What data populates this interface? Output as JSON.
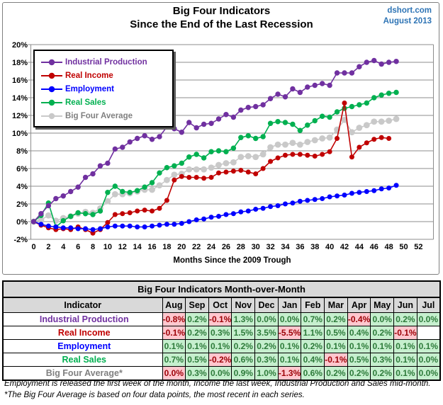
{
  "header": {
    "title_line1": "Big Four Indicators",
    "title_line2": "Since the End of the Last Recession",
    "source": "dshort.com",
    "date": "August 2013"
  },
  "colors": {
    "accent_blue": "#2E74B5",
    "good_bg": "#C6EFCE",
    "good_text": "#2C7A39",
    "bad_bg": "#FFC7CE",
    "bad_text": "#9C0006",
    "header_bg": "#D9D9D9",
    "grid": "#8C8C8C"
  },
  "chart_data": {
    "type": "line",
    "title": "Big Four Indicators Since the End of the Last Recession",
    "xlabel": "Months Since the 2009 Trough",
    "ylabel": "",
    "xlim": [
      0,
      52
    ],
    "ylim": [
      -2,
      20
    ],
    "x_tick_step": 2,
    "y_tick_step": 2,
    "y_tick_format": "percent",
    "grid": true,
    "legend_position": "upper-left",
    "draw_order": [
      4,
      3,
      1,
      2,
      0
    ],
    "series": [
      {
        "name": "Industrial Production",
        "color": "#7030A0",
        "marker_r": 3.7,
        "values": [
          0,
          0.9,
          1.8,
          2.6,
          2.9,
          3.4,
          3.9,
          5,
          5.4,
          6.3,
          6.6,
          8.2,
          8.4,
          9,
          9.4,
          9.7,
          9.3,
          9.6,
          10.7,
          10.5,
          10.1,
          11.2,
          10.6,
          11,
          11.1,
          11.6,
          12.1,
          11.8,
          12.6,
          12.9,
          13,
          13.2,
          13.9,
          14.4,
          14.1,
          15,
          14.6,
          15.2,
          15.4,
          15.6,
          15.4,
          16.8,
          16.8,
          16.8,
          17.5,
          18,
          18.2,
          17.8,
          18,
          18.1
        ]
      },
      {
        "name": "Real Income",
        "color": "#C00000",
        "marker_r": 3.5,
        "values": [
          0,
          -0.4,
          -0.7,
          -0.9,
          -0.8,
          -0.9,
          -0.6,
          -0.9,
          -1.3,
          -0.9,
          -0.1,
          0.8,
          0.9,
          1,
          1.2,
          1.3,
          1.2,
          1.5,
          2.4,
          4.7,
          5.1,
          5,
          5,
          4.9,
          5,
          5.5,
          5.6,
          5.7,
          5.8,
          5.6,
          5.4,
          6,
          6.8,
          7.2,
          7.5,
          7.6,
          7.6,
          7.5,
          7.4,
          7.6,
          7.9,
          9.4,
          13.4,
          7.3,
          8.4,
          8.9,
          9.3,
          9.5,
          9.4
        ]
      },
      {
        "name": "Employment",
        "color": "#0000FF",
        "marker_r": 3.5,
        "values": [
          0,
          -0.3,
          -0.5,
          -0.6,
          -0.7,
          -0.7,
          -0.8,
          -0.8,
          -0.9,
          -0.8,
          -0.6,
          -0.5,
          -0.5,
          -0.5,
          -0.6,
          -0.6,
          -0.5,
          -0.4,
          -0.3,
          -0.3,
          -0.2,
          0,
          0.2,
          0.3,
          0.5,
          0.6,
          0.8,
          0.9,
          1.1,
          1.2,
          1.4,
          1.5,
          1.7,
          1.8,
          2,
          2.1,
          2.3,
          2.4,
          2.5,
          2.6,
          2.8,
          2.9,
          3,
          3.2,
          3.3,
          3.4,
          3.5,
          3.7,
          3.8,
          4.1
        ]
      },
      {
        "name": "Real Sales",
        "color": "#00B050",
        "marker_r": 3.7,
        "values": [
          0,
          0.7,
          2.1,
          -0.6,
          0.1,
          0.6,
          1,
          0.9,
          0.8,
          1.2,
          3.3,
          4,
          3.4,
          3.3,
          3.5,
          3.9,
          4.4,
          5.5,
          6.1,
          6.3,
          6.6,
          7.3,
          7.6,
          7.2,
          7.9,
          8,
          7.9,
          8.3,
          9.5,
          9.7,
          9.4,
          9.6,
          11.1,
          11.3,
          11.2,
          11,
          10.3,
          10.9,
          11.4,
          11.9,
          11.8,
          12.4,
          12.8,
          13,
          13.2,
          13.4,
          14,
          14.3,
          14.5,
          14.6
        ]
      },
      {
        "name": "Big Four Average",
        "color": "#C9C9C9",
        "text_color": "#808080",
        "marker_r": 4.4,
        "values": [
          0,
          0.2,
          0.7,
          0.1,
          0.4,
          0.6,
          0.9,
          1.1,
          1,
          1.5,
          2.3,
          3.1,
          3.1,
          3.2,
          3.4,
          3.6,
          3.6,
          4.1,
          4.7,
          5.3,
          5.4,
          5.9,
          5.9,
          5.9,
          6.1,
          6.4,
          6.6,
          6.7,
          7.3,
          7.4,
          7.3,
          7.6,
          8.4,
          8.7,
          8.7,
          8.9,
          8.7,
          9,
          9.2,
          9.4,
          9.5,
          10.4,
          11.5,
          10.1,
          10.6,
          10.9,
          11.3,
          11.3,
          11.4,
          11.6
        ]
      }
    ]
  },
  "table": {
    "title": "Big Four Indicators Month-over-Month",
    "col_header": "Indicator",
    "months": [
      "Aug",
      "Sep",
      "Oct",
      "Nov",
      "Dec",
      "Jan",
      "Feb",
      "Mar",
      "Apr",
      "May",
      "Jun",
      "Jul"
    ],
    "rows": [
      {
        "label": "Industrial Production",
        "color": "#7030A0",
        "values": [
          "-0.8%",
          "0.2%",
          "-0.1%",
          "1.3%",
          "0.0%",
          "0.0%",
          "0.7%",
          "0.2%",
          "-0.4%",
          "0.0%",
          "0.2%",
          "0.0%"
        ],
        "states": [
          "b",
          "g",
          "b",
          "g",
          "g",
          "g",
          "g",
          "g",
          "b",
          "g",
          "g",
          "g"
        ]
      },
      {
        "label": "Real Income",
        "color": "#C00000",
        "values": [
          "-0.1%",
          "0.2%",
          "0.3%",
          "1.5%",
          "3.5%",
          "-5.5%",
          "1.1%",
          "0.5%",
          "0.4%",
          "0.2%",
          "-0.1%",
          ""
        ],
        "states": [
          "b",
          "g",
          "g",
          "g",
          "g",
          "b",
          "g",
          "g",
          "g",
          "g",
          "b",
          "e"
        ]
      },
      {
        "label": "Employment",
        "color": "#0000FF",
        "values": [
          "0.1%",
          "0.1%",
          "0.1%",
          "0.2%",
          "0.2%",
          "0.1%",
          "0.2%",
          "0.1%",
          "0.1%",
          "0.1%",
          "0.1%",
          "0.1%"
        ],
        "states": [
          "g",
          "g",
          "g",
          "g",
          "g",
          "g",
          "g",
          "g",
          "g",
          "g",
          "g",
          "g"
        ]
      },
      {
        "label": "Real Sales",
        "color": "#00B050",
        "values": [
          "0.7%",
          "0.5%",
          "-0.2%",
          "0.6%",
          "0.3%",
          "0.1%",
          "0.4%",
          "-0.1%",
          "0.5%",
          "0.3%",
          "0.1%",
          "0.0%"
        ],
        "states": [
          "g",
          "g",
          "b",
          "g",
          "g",
          "g",
          "g",
          "b",
          "g",
          "g",
          "g",
          "g"
        ]
      },
      {
        "label": "Big Four Average*",
        "color": "#808080",
        "values": [
          "0.0%",
          "0.3%",
          "0.0%",
          "0.9%",
          "1.0%",
          "-1.3%",
          "0.6%",
          "0.2%",
          "0.2%",
          "0.2%",
          "0.1%",
          "0.0%"
        ],
        "states": [
          "b",
          "g",
          "g",
          "g",
          "g",
          "b",
          "g",
          "g",
          "g",
          "g",
          "g",
          "g"
        ]
      }
    ]
  },
  "footnotes": [
    "Employment is released the first week of the month, Income the last week, Industrial Production and Sales mid-month.",
    "*The Big Four Average is based on four data points, the most recent in each series."
  ]
}
